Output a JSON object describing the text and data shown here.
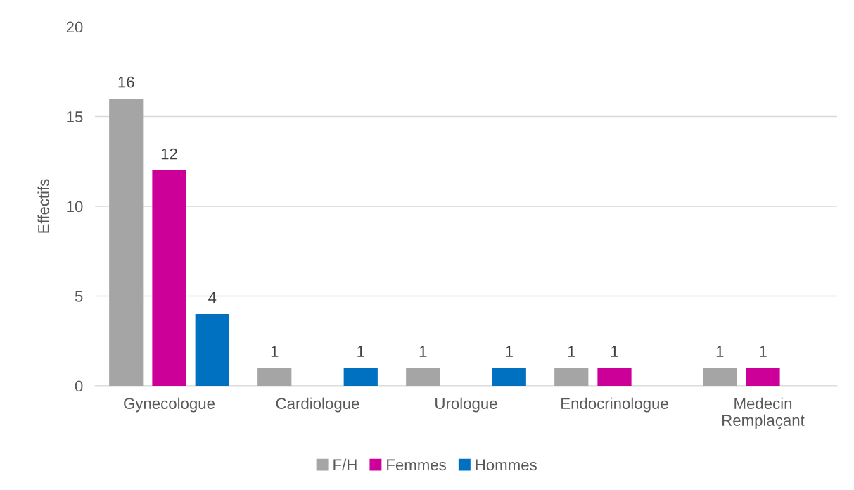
{
  "chart_data": {
    "type": "bar",
    "ylabel": "Effectifs",
    "categories": [
      "Gynecologue",
      "Cardiologue",
      "Urologue",
      "Endocrinologue",
      "Medecin Remplaçant"
    ],
    "series": [
      {
        "name": "F/H",
        "color": "#a5a5a5",
        "values": [
          16,
          1,
          1,
          1,
          1
        ]
      },
      {
        "name": "Femmes",
        "color": "#cc0099",
        "values": [
          12,
          null,
          null,
          1,
          1
        ]
      },
      {
        "name": "Hommes",
        "color": "#0070c0",
        "values": [
          4,
          1,
          1,
          null,
          null
        ]
      }
    ],
    "ylim": [
      0,
      20
    ],
    "yticks": [
      0,
      5,
      10,
      15,
      20
    ],
    "grid": "y",
    "legend": "bottom",
    "data_labels": true
  }
}
